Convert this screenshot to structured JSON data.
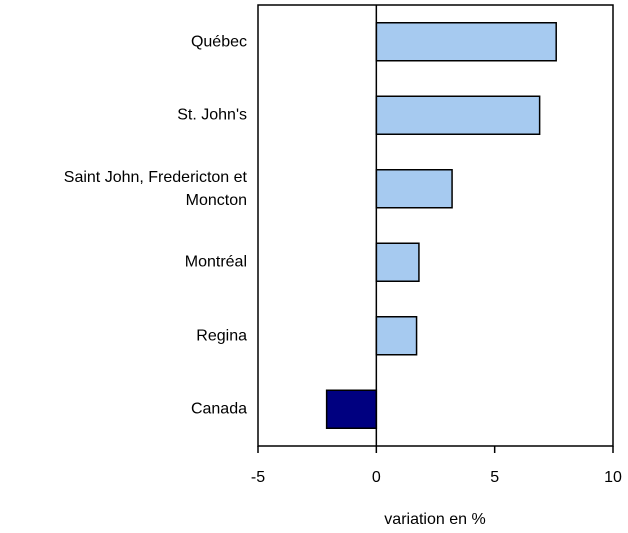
{
  "chart_data": {
    "type": "barh",
    "categories": [
      "Québec",
      "St. John's",
      "Saint John, Fredericton et Moncton",
      "Montréal",
      "Regina",
      "Canada"
    ],
    "values": [
      7.6,
      6.9,
      3.2,
      1.8,
      1.7,
      -2.1
    ],
    "colors": [
      "#a6caf0",
      "#a6caf0",
      "#a6caf0",
      "#a6caf0",
      "#a6caf0",
      "#000080"
    ],
    "xlim": [
      -5,
      10
    ],
    "xticks": [
      -5,
      0,
      5,
      10
    ],
    "xlabel": "variation en %"
  }
}
